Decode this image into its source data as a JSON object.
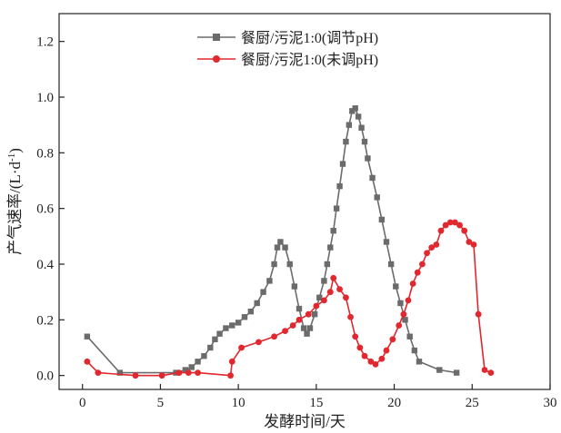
{
  "chart_data": {
    "type": "line",
    "xlabel": "发酵时间/天",
    "ylabel": "产气速率/(L·d",
    "ylabel_sup": "-1",
    "ylabel_close": ")",
    "xlim": [
      -1.5,
      30
    ],
    "ylim": [
      -0.05,
      1.3
    ],
    "x_ticks": [
      0,
      5,
      10,
      15,
      20,
      25,
      30
    ],
    "y_ticks": [
      0.0,
      0.2,
      0.4,
      0.6,
      0.8,
      1.0,
      1.2
    ],
    "legend_position": "top-right",
    "series": [
      {
        "name": "餐厨/污泥1:0(调节pH)",
        "color": "#6b6b6b",
        "marker": "square",
        "points": [
          [
            0.3,
            0.14
          ],
          [
            2.4,
            0.01
          ],
          [
            6.0,
            0.01
          ],
          [
            6.6,
            0.02
          ],
          [
            7.0,
            0.03
          ],
          [
            7.4,
            0.05
          ],
          [
            7.8,
            0.07
          ],
          [
            8.2,
            0.1
          ],
          [
            8.5,
            0.13
          ],
          [
            8.8,
            0.15
          ],
          [
            9.2,
            0.17
          ],
          [
            9.6,
            0.18
          ],
          [
            10.0,
            0.19
          ],
          [
            10.4,
            0.21
          ],
          [
            10.8,
            0.23
          ],
          [
            11.2,
            0.26
          ],
          [
            11.6,
            0.3
          ],
          [
            12.0,
            0.34
          ],
          [
            12.3,
            0.4
          ],
          [
            12.5,
            0.46
          ],
          [
            12.7,
            0.48
          ],
          [
            13.0,
            0.46
          ],
          [
            13.3,
            0.4
          ],
          [
            13.6,
            0.32
          ],
          [
            13.9,
            0.24
          ],
          [
            14.2,
            0.17
          ],
          [
            14.4,
            0.15
          ],
          [
            14.6,
            0.17
          ],
          [
            14.9,
            0.22
          ],
          [
            15.2,
            0.28
          ],
          [
            15.5,
            0.34
          ],
          [
            15.7,
            0.4
          ],
          [
            15.9,
            0.46
          ],
          [
            16.1,
            0.52
          ],
          [
            16.3,
            0.6
          ],
          [
            16.5,
            0.68
          ],
          [
            16.7,
            0.76
          ],
          [
            16.9,
            0.84
          ],
          [
            17.1,
            0.9
          ],
          [
            17.3,
            0.95
          ],
          [
            17.5,
            0.96
          ],
          [
            17.7,
            0.93
          ],
          [
            17.9,
            0.89
          ],
          [
            18.1,
            0.84
          ],
          [
            18.3,
            0.78
          ],
          [
            18.6,
            0.71
          ],
          [
            18.9,
            0.64
          ],
          [
            19.2,
            0.56
          ],
          [
            19.5,
            0.48
          ],
          [
            19.8,
            0.4
          ],
          [
            20.1,
            0.32
          ],
          [
            20.4,
            0.26
          ],
          [
            20.7,
            0.2
          ],
          [
            21.0,
            0.14
          ],
          [
            21.3,
            0.09
          ],
          [
            21.6,
            0.05
          ],
          [
            22.9,
            0.02
          ],
          [
            24.0,
            0.01
          ]
        ]
      },
      {
        "name": "餐厨/污泥1:0(未调pH)",
        "color": "#e0282e",
        "marker": "circle",
        "points": [
          [
            0.3,
            0.05
          ],
          [
            1.0,
            0.01
          ],
          [
            3.4,
            0.0
          ],
          [
            5.1,
            0.0
          ],
          [
            6.2,
            0.01
          ],
          [
            6.8,
            0.01
          ],
          [
            7.4,
            0.01
          ],
          [
            9.5,
            0.0
          ],
          [
            9.6,
            0.05
          ],
          [
            10.2,
            0.1
          ],
          [
            11.3,
            0.12
          ],
          [
            12.3,
            0.14
          ],
          [
            13.0,
            0.16
          ],
          [
            13.5,
            0.18
          ],
          [
            13.9,
            0.2
          ],
          [
            14.5,
            0.22
          ],
          [
            15.0,
            0.25
          ],
          [
            15.5,
            0.27
          ],
          [
            15.9,
            0.3
          ],
          [
            16.1,
            0.35
          ],
          [
            16.5,
            0.31
          ],
          [
            16.9,
            0.28
          ],
          [
            17.2,
            0.21
          ],
          [
            17.5,
            0.14
          ],
          [
            17.8,
            0.1
          ],
          [
            18.1,
            0.07
          ],
          [
            18.5,
            0.05
          ],
          [
            18.8,
            0.04
          ],
          [
            19.2,
            0.06
          ],
          [
            19.5,
            0.09
          ],
          [
            19.9,
            0.13
          ],
          [
            20.3,
            0.18
          ],
          [
            20.6,
            0.22
          ],
          [
            20.9,
            0.27
          ],
          [
            21.2,
            0.33
          ],
          [
            21.5,
            0.37
          ],
          [
            21.8,
            0.4
          ],
          [
            22.1,
            0.44
          ],
          [
            22.4,
            0.46
          ],
          [
            22.7,
            0.47
          ],
          [
            23.0,
            0.52
          ],
          [
            23.3,
            0.54
          ],
          [
            23.6,
            0.55
          ],
          [
            23.9,
            0.55
          ],
          [
            24.2,
            0.54
          ],
          [
            24.5,
            0.52
          ],
          [
            24.8,
            0.48
          ],
          [
            25.1,
            0.47
          ],
          [
            25.4,
            0.22
          ],
          [
            25.8,
            0.02
          ],
          [
            26.2,
            0.01
          ]
        ]
      }
    ]
  }
}
